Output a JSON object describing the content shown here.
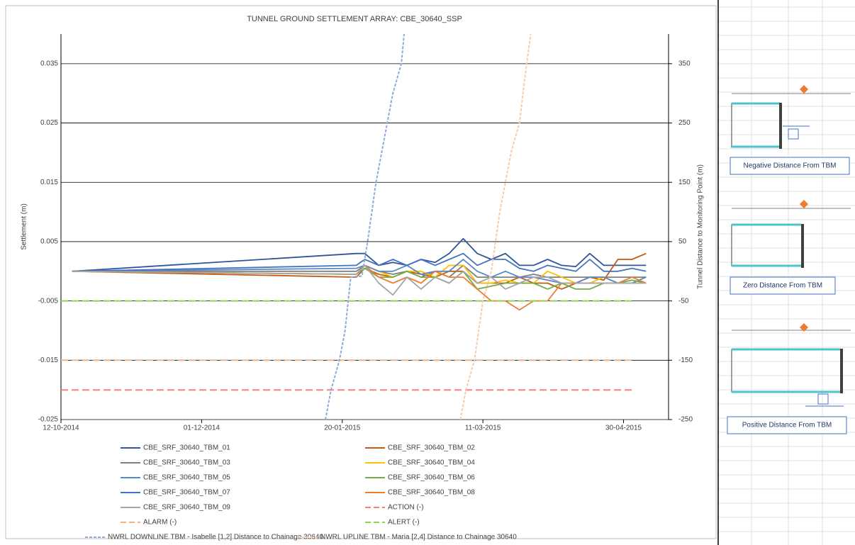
{
  "chart_data": {
    "type": "line",
    "title": "TUNNEL GROUND SETTLEMENT ARRAY: CBE_30640_SSP",
    "ylabel": "Settlement (m)",
    "y2label": "Tunnel Distance to Monitoring Point (m)",
    "xlim": [
      "2014-10-12",
      "2015-05-16"
    ],
    "xticks": [
      {
        "value": "2014-10-12",
        "label": "12-10-2014"
      },
      {
        "value": "2014-12-01",
        "label": "01-12-2014"
      },
      {
        "value": "2015-01-20",
        "label": "20-01-2015"
      },
      {
        "value": "2015-03-11",
        "label": "11-03-2015"
      },
      {
        "value": "2015-04-30",
        "label": "30-04-2015"
      }
    ],
    "ylim": [
      -0.025,
      0.04
    ],
    "yticks": [
      -0.025,
      -0.015,
      -0.005,
      0.005,
      0.015,
      0.025,
      0.035
    ],
    "y2lim": [
      -250,
      400
    ],
    "y2ticks": [
      -250,
      -150,
      -50,
      50,
      150,
      250,
      350
    ],
    "grid": true,
    "legend": "bottom",
    "x": [
      "2014-10-16",
      "2015-01-25",
      "2015-01-28",
      "2015-02-02",
      "2015-02-07",
      "2015-02-12",
      "2015-02-17",
      "2015-02-22",
      "2015-02-27",
      "2015-03-04",
      "2015-03-09",
      "2015-03-14",
      "2015-03-19",
      "2015-03-24",
      "2015-03-29",
      "2015-04-03",
      "2015-04-08",
      "2015-04-13",
      "2015-04-18",
      "2015-04-23",
      "2015-04-28",
      "2015-05-03",
      "2015-05-08"
    ],
    "series": [
      {
        "name": "CBE_SRF_30640_TBM_01",
        "color": "#2f5597",
        "values": [
          0,
          0.003,
          0.003,
          0.001,
          0.0015,
          0.001,
          0.002,
          0.0015,
          0.003,
          0.0055,
          0.003,
          0.002,
          0.003,
          0.001,
          0.001,
          0.002,
          0.001,
          0.0008,
          0.003,
          0.001,
          0.001,
          0.001,
          0.001
        ]
      },
      {
        "name": "CBE_SRF_30640_TBM_02",
        "color": "#c55a11",
        "values": [
          0,
          -0.001,
          0.0005,
          -0.0005,
          -0.001,
          0,
          -0.0005,
          -0.001,
          0,
          0,
          -0.002,
          -0.002,
          -0.002,
          -0.001,
          -0.002,
          -0.002,
          -0.003,
          -0.002,
          -0.001,
          -0.0015,
          0.002,
          0.002,
          0.003
        ]
      },
      {
        "name": "CBE_SRF_30640_TBM_03",
        "color": "#7f7f7f",
        "values": [
          0,
          0,
          0.001,
          0,
          -0.0005,
          0,
          -0.001,
          0,
          -0.001,
          0.001,
          -0.001,
          -0.001,
          -0.001,
          -0.001,
          -0.0005,
          -0.001,
          -0.001,
          -0.001,
          -0.001,
          -0.001,
          -0.001,
          -0.001,
          -0.001
        ]
      },
      {
        "name": "CBE_SRF_30640_TBM_04",
        "color": "#ffc000",
        "values": [
          0,
          -0.0005,
          0.001,
          0,
          -0.001,
          0,
          0,
          -0.001,
          0.001,
          0.001,
          -0.002,
          -0.002,
          -0.0015,
          -0.002,
          -0.002,
          0,
          -0.001,
          -0.002,
          -0.002,
          -0.001,
          -0.002,
          -0.002,
          -0.002
        ]
      },
      {
        "name": "CBE_SRF_30640_TBM_05",
        "color": "#5b87c5",
        "values": [
          0,
          0.0005,
          0.001,
          0,
          0,
          0.001,
          -0.0005,
          0,
          0,
          0.002,
          0,
          -0.001,
          0,
          -0.001,
          -0.001,
          -0.0015,
          -0.002,
          -0.002,
          -0.001,
          -0.001,
          -0.002,
          -0.002,
          -0.001
        ]
      },
      {
        "name": "CBE_SRF_30640_TBM_06",
        "color": "#70ad47",
        "values": [
          0,
          -0.0005,
          0.0005,
          -0.001,
          -0.001,
          0,
          -0.001,
          -0.001,
          -0.002,
          0,
          -0.003,
          -0.0025,
          -0.002,
          -0.002,
          -0.002,
          -0.003,
          -0.002,
          -0.003,
          -0.003,
          -0.002,
          -0.002,
          -0.0015,
          -0.002
        ]
      },
      {
        "name": "CBE_SRF_30640_TBM_07",
        "color": "#4472c4",
        "values": [
          0,
          0.001,
          0.002,
          0.001,
          0.002,
          0.001,
          0.002,
          0.001,
          0.002,
          0.003,
          0.001,
          0.002,
          0.002,
          0.0005,
          0,
          0.001,
          0.0005,
          0,
          0.002,
          0,
          0,
          0.0005,
          0
        ]
      },
      {
        "name": "CBE_SRF_30640_TBM_08",
        "color": "#ed7d31",
        "values": [
          0,
          -0.0005,
          0.001,
          -0.001,
          -0.002,
          -0.001,
          -0.002,
          0,
          -0.001,
          -0.001,
          -0.003,
          -0.005,
          -0.005,
          -0.0065,
          -0.005,
          -0.005,
          -0.002,
          -0.002,
          -0.002,
          -0.002,
          -0.002,
          -0.001,
          -0.002
        ]
      },
      {
        "name": "CBE_SRF_30640_TBM_09",
        "color": "#a5a5a5",
        "values": [
          0,
          -0.0005,
          0.001,
          -0.002,
          -0.004,
          -0.001,
          -0.003,
          -0.001,
          -0.002,
          0,
          -0.002,
          -0.001,
          -0.003,
          -0.002,
          -0.001,
          -0.001,
          -0.002,
          -0.002,
          -0.002,
          -0.002,
          -0.002,
          -0.002,
          -0.002
        ]
      },
      {
        "name": "ACTION (-)",
        "color": "#ff7c80",
        "dashed": true,
        "x": [
          "2014-10-12",
          "2015-05-04"
        ],
        "values": [
          -0.02,
          -0.02
        ]
      },
      {
        "name": "ALARM (-)",
        "color": "#f4b183",
        "dashed": true,
        "x": [
          "2014-10-12",
          "2015-05-04"
        ],
        "values": [
          -0.015,
          -0.015
        ]
      },
      {
        "name": "ALERT (-)",
        "color": "#92d050",
        "dashed": true,
        "x": [
          "2014-10-12",
          "2015-05-04"
        ],
        "values": [
          -0.005,
          -0.005
        ]
      },
      {
        "name": "NWRL DOWNLINE TBM - Isabelle [1,2] Distance to Chainage 30640",
        "color": "#8faadc",
        "dashed": true,
        "axis": "y2",
        "x": [
          "2015-01-14",
          "2015-01-16",
          "2015-01-19",
          "2015-01-21",
          "2015-01-23",
          "2015-01-27",
          "2015-01-29",
          "2015-02-01",
          "2015-02-05",
          "2015-02-07",
          "2015-02-10",
          "2015-02-11"
        ],
        "values": [
          -250,
          -200,
          -150,
          -100,
          -10,
          -8,
          50,
          150,
          250,
          300,
          350,
          400
        ]
      },
      {
        "name": "NWRL UPLINE TBM - Maria [2,4] Distance to Chainage 30640",
        "color": "#f8cbad",
        "dashed": true,
        "axis": "y2",
        "x": [
          "2015-03-03",
          "2015-03-05",
          "2015-03-08",
          "2015-03-11",
          "2015-03-14",
          "2015-03-17",
          "2015-03-21",
          "2015-03-24",
          "2015-03-26",
          "2015-03-28"
        ],
        "values": [
          -250,
          -200,
          -150,
          -50,
          0,
          100,
          200,
          250,
          330,
          400
        ]
      }
    ]
  },
  "panel": {
    "labels": [
      "Negative Distance From TBM",
      "Zero Distance From TBM",
      "Positive Distance From TBM"
    ]
  }
}
